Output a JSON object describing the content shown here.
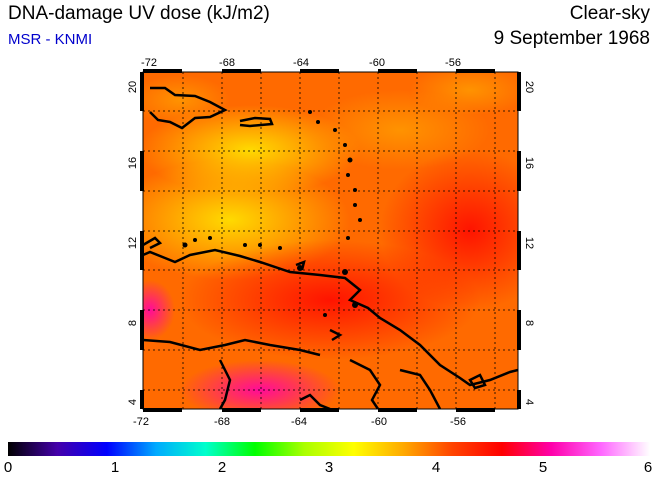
{
  "header": {
    "title": "DNA-damage UV dose (kJ/m2)",
    "source": "MSR - KNMI",
    "sky_condition": "Clear-sky",
    "date": "9 September 1968"
  },
  "map": {
    "lon_range": [
      -72,
      -53
    ],
    "lat_range": [
      4,
      20.5
    ],
    "lon_ticks": [
      "-72",
      "-68",
      "-64",
      "-60",
      "-56"
    ],
    "lat_ticks": [
      "20",
      "16",
      "12",
      "8",
      "4"
    ],
    "gridlines": "dotted"
  },
  "colorbar": {
    "min": 0,
    "max": 6,
    "labels": [
      "0",
      "1",
      "2",
      "3",
      "4",
      "5",
      "6"
    ],
    "colors": [
      "#000000",
      "#4400aa",
      "#0000ff",
      "#00aaff",
      "#00ffcc",
      "#00ff00",
      "#aaff00",
      "#ffff00",
      "#ffaa00",
      "#ff4400",
      "#ff0000",
      "#ff00aa",
      "#ff66ff",
      "#ffffff"
    ]
  }
}
